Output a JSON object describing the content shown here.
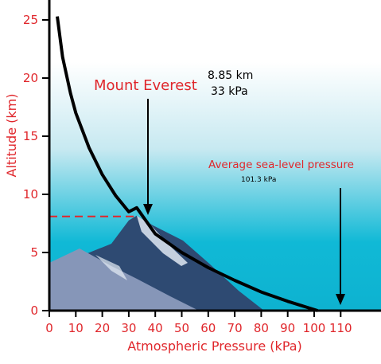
{
  "colors": {
    "label_red": "#e0262b",
    "curve": "#000000",
    "sky_top": "#ffffff",
    "sky_bottom": "#10b9d6",
    "mountain_dark": "#2e4a72",
    "mountain_light": "#8696b8",
    "dashed": "#e0262b"
  },
  "chart_data": {
    "type": "line",
    "title": "",
    "xlabel": "Atmospheric Pressure (kPa)",
    "ylabel": "Altitude (km)",
    "xlim": [
      0,
      110
    ],
    "ylim": [
      0,
      26
    ],
    "x_ticks": [
      0,
      10,
      20,
      30,
      40,
      50,
      60,
      70,
      80,
      90,
      100,
      110
    ],
    "y_ticks": [
      0,
      5,
      10,
      15,
      20,
      25
    ],
    "x_tick_labels": [
      "0",
      "10",
      "20",
      "30",
      "40",
      "50",
      "60",
      "70",
      "80",
      "90",
      "100",
      "110"
    ],
    "y_tick_labels": [
      "0",
      "5",
      "10",
      "15",
      "20",
      "25"
    ],
    "grid": false,
    "series": [
      {
        "x": [
          3,
          5,
          8,
          10,
          15,
          20,
          25,
          30,
          33,
          40,
          50,
          60,
          70,
          80,
          90,
          101.3
        ],
        "y": [
          25.3,
          21.8,
          18.7,
          17.0,
          14.0,
          11.7,
          9.9,
          8.5,
          8.85,
          6.6,
          5.0,
          3.7,
          2.6,
          1.6,
          0.8,
          0
        ]
      }
    ],
    "annotations": [
      {
        "label": "Mount Everest",
        "values": [
          "8.85 km",
          "33 kPa"
        ],
        "point": {
          "x": 33,
          "y": 8.85
        }
      },
      {
        "label": "Average sea-level pressure",
        "values": [
          "101.3 kPa"
        ],
        "point": {
          "x": 101.3,
          "y": 0
        }
      }
    ]
  }
}
